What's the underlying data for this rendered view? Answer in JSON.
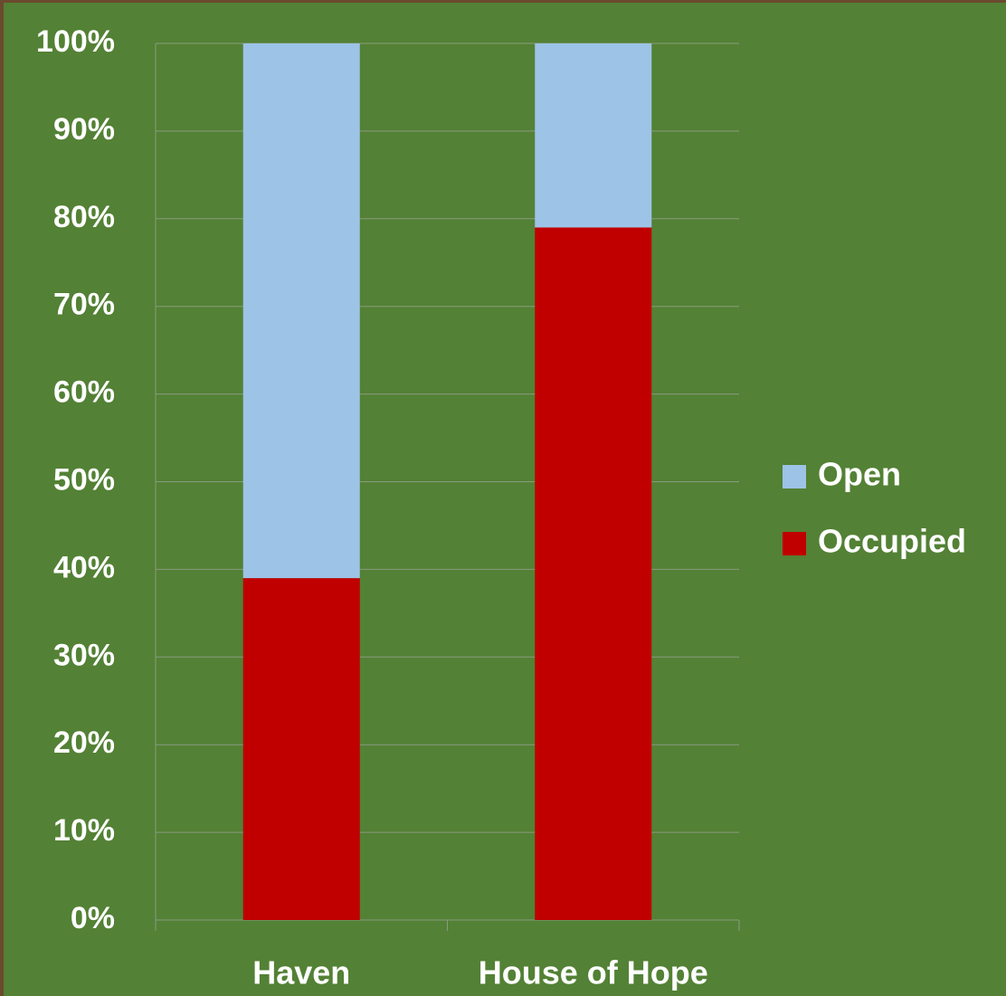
{
  "chart_data": {
    "type": "stacked-bar",
    "categories": [
      "Haven",
      "House of Hope"
    ],
    "series": [
      {
        "name": "Occupied",
        "color": "#c00000",
        "values": [
          39,
          79
        ]
      },
      {
        "name": "Open",
        "color": "#9dc3e6",
        "values": [
          61,
          21
        ]
      }
    ],
    "ylim": [
      0,
      100
    ],
    "yticks": [
      {
        "value": 0,
        "label": "0%"
      },
      {
        "value": 10,
        "label": "10%"
      },
      {
        "value": 20,
        "label": "20%"
      },
      {
        "value": 30,
        "label": "30%"
      },
      {
        "value": 40,
        "label": "40%"
      },
      {
        "value": 50,
        "label": "50%"
      },
      {
        "value": 60,
        "label": "60%"
      },
      {
        "value": 70,
        "label": "70%"
      },
      {
        "value": 80,
        "label": "80%"
      },
      {
        "value": 90,
        "label": "90%"
      },
      {
        "value": 100,
        "label": "100%"
      }
    ],
    "grid": true,
    "legend": "right"
  }
}
